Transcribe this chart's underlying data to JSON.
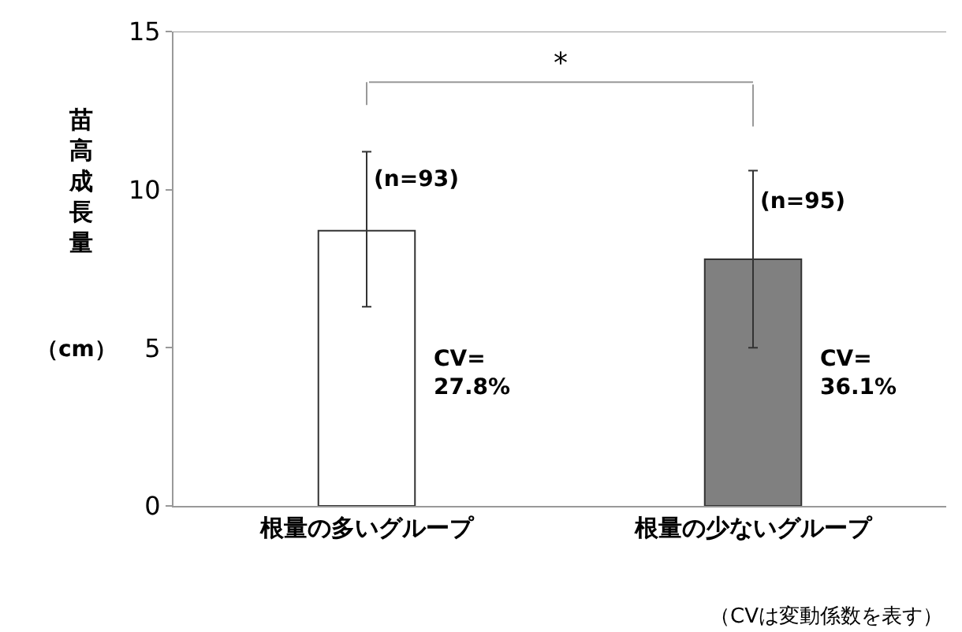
{
  "chart_data": {
    "type": "bar",
    "ylabel": "苗高成長量（cm）",
    "categories": [
      "根量の多いグループ",
      "根量の少ないグループ"
    ],
    "values": [
      8.7,
      7.8
    ],
    "colors": [
      "#ffffff",
      "#808080"
    ],
    "errors": [
      [
        6.3,
        11.2
      ],
      [
        5.0,
        10.6
      ]
    ],
    "ylim": [
      0,
      15
    ],
    "yticks": [
      0,
      5,
      10,
      15
    ],
    "annotations": [
      {
        "text": "(n=93)",
        "x": "根量の多いグループ",
        "y": 10.3
      },
      "CV=\n27.8%",
      {
        "text": "(n=95)",
        "x": "根量の少ないグループ",
        "y": 9.6
      },
      "CV=\n36.1%",
      "*",
      "（CVは変動係数を表す）"
    ]
  }
}
